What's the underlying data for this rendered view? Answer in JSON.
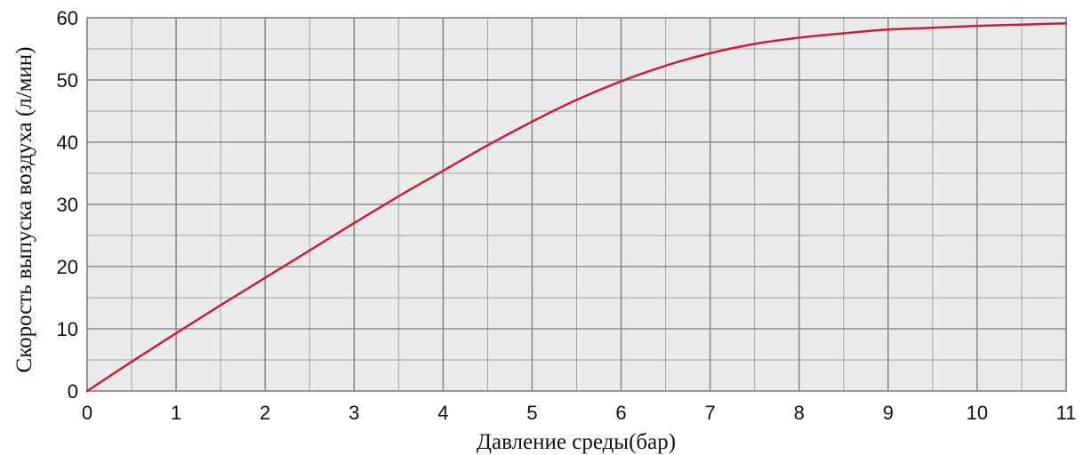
{
  "chart_data": {
    "type": "line",
    "xlabel": "Давление среды(бар)",
    "ylabel": "Скорость выпуска воздуха (л/мин)",
    "xlim": [
      0,
      11
    ],
    "ylim": [
      0,
      60
    ],
    "xticks": [
      0,
      1,
      2,
      3,
      4,
      5,
      6,
      7,
      8,
      9,
      10,
      11
    ],
    "yticks": [
      0,
      10,
      20,
      30,
      40,
      50,
      60
    ],
    "grid": true,
    "legend": "none",
    "colors": {
      "line": "#c8203a",
      "plot_bg": "#ebebeb",
      "grid": "#8c8c8c"
    },
    "series": [
      {
        "x": [
          0,
          0.5,
          1,
          1.5,
          2,
          2.5,
          3,
          3.5,
          4,
          4.5,
          5,
          5.5,
          6,
          6.5,
          7,
          7.5,
          8,
          8.5,
          9,
          9.5,
          10,
          10.5,
          11
        ],
        "y": [
          0,
          4.7,
          9.3,
          13.8,
          18.2,
          22.6,
          27.0,
          31.3,
          35.4,
          39.5,
          43.3,
          46.8,
          49.8,
          52.3,
          54.3,
          55.8,
          56.8,
          57.5,
          58.1,
          58.4,
          58.7,
          58.9,
          59.1
        ]
      }
    ]
  }
}
